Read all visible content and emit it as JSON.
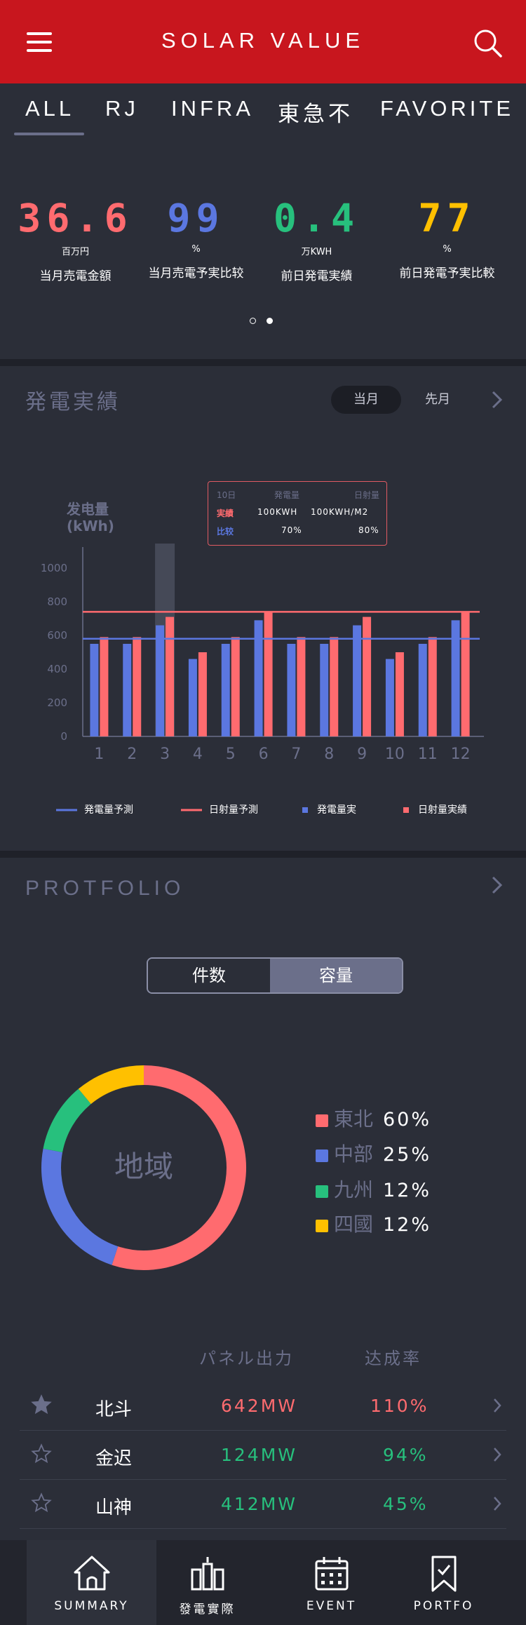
{
  "header": {
    "title": "SOLAR VALUE",
    "menu_icon": "hamburger-menu-icon",
    "search_icon": "search-icon",
    "background": "#c8161e"
  },
  "tabs": [
    {
      "label": "ALL",
      "active": true
    },
    {
      "label": "RJ"
    },
    {
      "label": "INFRA"
    },
    {
      "label": "東急不"
    },
    {
      "label": "FAVORITE"
    }
  ],
  "stats": [
    {
      "value": "36.6",
      "unit": "百万円",
      "label": "当月売電金額",
      "color": "#ff6b6f"
    },
    {
      "value": "99",
      "unit": "%",
      "label": "当月売電予実比较",
      "color": "#5b77e0"
    },
    {
      "value": "0.4",
      "unit": "万KWH",
      "label": "前日発電実績",
      "color": "#27c07d"
    },
    {
      "value": "77",
      "unit": "%",
      "label": "前日発電予実比較",
      "color": "#ffc000"
    }
  ],
  "pager": {
    "count": 2,
    "active": 1
  },
  "generation": {
    "title": "発電実績",
    "period_current": "当月",
    "period_previous": "先月"
  },
  "tooltip": {
    "day": "10日",
    "col1": "発電量",
    "col2": "日射量",
    "row1_label": "実績",
    "row1_v1": "100KWH",
    "row1_v2": "100KWH/M2",
    "row2_label": "比较",
    "row2_v1": "70%",
    "row2_v2": "80%"
  },
  "chart_data": {
    "type": "bar",
    "ylabel": "发电量\n(kWh)",
    "ylabel_line1": "发电量",
    "ylabel_line2": "(kWh)",
    "ylim": [
      0,
      1000
    ],
    "yticks": [
      0,
      200,
      400,
      600,
      800,
      1000
    ],
    "categories": [
      "1",
      "2",
      "3",
      "4",
      "5",
      "6",
      "7",
      "8",
      "9",
      "10",
      "11",
      "12"
    ],
    "highlighted_category": "3",
    "series": [
      {
        "name": "発電量実",
        "color": "#5b77e0",
        "values": [
          550,
          550,
          660,
          460,
          550,
          690,
          550,
          550,
          660,
          460,
          550,
          690
        ]
      },
      {
        "name": "日射量実績",
        "color": "#ff6b6f",
        "values": [
          590,
          590,
          710,
          500,
          590,
          740,
          590,
          590,
          710,
          500,
          590,
          740
        ]
      }
    ],
    "reference_lines": [
      {
        "name": "発電量予測",
        "color": "#5b77e0",
        "value": 580
      },
      {
        "name": "日射量予測",
        "color": "#ff6b6f",
        "value": 740
      }
    ],
    "grid": false,
    "legend_position": "bottom"
  },
  "legend": [
    {
      "label": "発電量予測",
      "kind": "line",
      "color": "#5b77e0"
    },
    {
      "label": "日射量予測",
      "kind": "line",
      "color": "#ff6b6f"
    },
    {
      "label": "発電量実",
      "kind": "square",
      "color": "#5b77e0"
    },
    {
      "label": "日射量実績",
      "kind": "square",
      "color": "#ff6b6f"
    }
  ],
  "portfolio": {
    "title": "PROTFOLIO",
    "toggle_count": "件数",
    "toggle_capacity": "容量",
    "donut_center": "地域",
    "regions": [
      {
        "name": "東北",
        "pct": "60%",
        "value": 60,
        "color": "#ff6b6f"
      },
      {
        "name": "中部",
        "pct": "25%",
        "value": 25,
        "color": "#5b77e0"
      },
      {
        "name": "九州",
        "pct": "12%",
        "value": 12,
        "color": "#27c07d"
      },
      {
        "name": "四國",
        "pct": "12%",
        "value": 12,
        "color": "#ffc000"
      }
    ],
    "col_panel": "パネル出力",
    "col_rate": "达成率",
    "rows": [
      {
        "name": "北斗",
        "output": "642MW",
        "rate": "110%",
        "favorite": true,
        "color": "#ff6b6f"
      },
      {
        "name": "金迟",
        "output": "124MW",
        "rate": "94%",
        "favorite": false,
        "color": "#27c07d"
      },
      {
        "name": "山神",
        "output": "412MW",
        "rate": "45%",
        "favorite": false,
        "color": "#27c07d"
      }
    ]
  },
  "bottom_nav": [
    {
      "label": "SUMMARY",
      "icon": "home-icon",
      "active": true
    },
    {
      "label": "發電實際",
      "icon": "plant-icon"
    },
    {
      "label": "EVENT",
      "icon": "calendar-icon"
    },
    {
      "label": "PORTFO",
      "icon": "bookmark-icon"
    }
  ]
}
